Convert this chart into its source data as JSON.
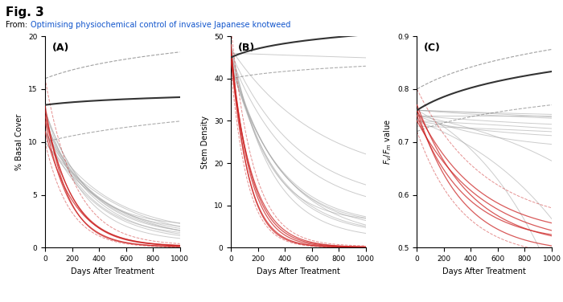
{
  "title": "Fig. 3",
  "subtitle_prefix": "From: ",
  "subtitle_link": "Optimising physiochemical control of invasive Japanese knotweed",
  "panels": [
    "(A)",
    "(B)",
    "(C)"
  ],
  "panel_ylabels": [
    "% Basal Cover",
    "Stem Density",
    "F_v / F_m value"
  ],
  "panel_yticks_A": [
    0,
    5,
    10,
    15,
    20
  ],
  "panel_yticks_B": [
    0,
    10,
    20,
    30,
    40,
    50
  ],
  "panel_yticks_C": [
    0.5,
    0.6,
    0.7,
    0.8,
    0.9
  ],
  "xlabel": "Days After Treatment",
  "xlim": [
    0,
    1000
  ],
  "xticks": [
    0,
    200,
    400,
    600,
    800,
    1000
  ],
  "control_color": "#333333",
  "red_color": "#cc2222",
  "grey_color": "#aaaaaa",
  "dashed_color": "#888888"
}
